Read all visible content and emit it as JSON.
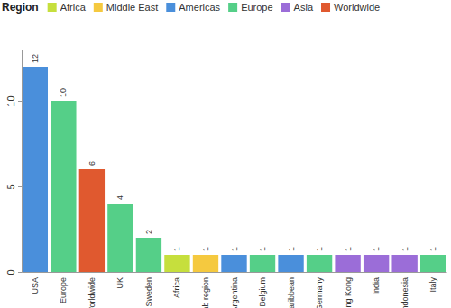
{
  "chart_data": {
    "type": "bar",
    "legend_title": "Region",
    "legend": "top-left",
    "legend_entries": [
      {
        "name": "Africa",
        "color": "#c6df3d"
      },
      {
        "name": "Middle East",
        "color": "#f5c93f"
      },
      {
        "name": "Americas",
        "color": "#4a8fdb"
      },
      {
        "name": "Europe",
        "color": "#55cf88"
      },
      {
        "name": "Asia",
        "color": "#9b6dd8"
      },
      {
        "name": "Worldwide",
        "color": "#e0592f"
      }
    ],
    "categories": [
      "USA",
      "Europe",
      "Worldwide",
      "UK",
      "Sweden",
      "Africa",
      "Arab region",
      "Argentina",
      "Belgium",
      "Caribbean",
      "Germany",
      "Hong Kong",
      "India",
      "Indonesia",
      "Italy"
    ],
    "values": [
      12,
      10,
      6,
      4,
      2,
      1,
      1,
      1,
      1,
      1,
      1,
      1,
      1,
      1,
      1
    ],
    "colors": [
      "#4a8fdb",
      "#55cf88",
      "#e0592f",
      "#55cf88",
      "#55cf88",
      "#c6df3d",
      "#f5c93f",
      "#4a8fdb",
      "#55cf88",
      "#4a8fdb",
      "#55cf88",
      "#9b6dd8",
      "#9b6dd8",
      "#9b6dd8",
      "#55cf88"
    ],
    "ylim": [
      0,
      13
    ],
    "yticks": [
      0,
      5,
      10
    ],
    "grid": false,
    "data_labels": true
  }
}
